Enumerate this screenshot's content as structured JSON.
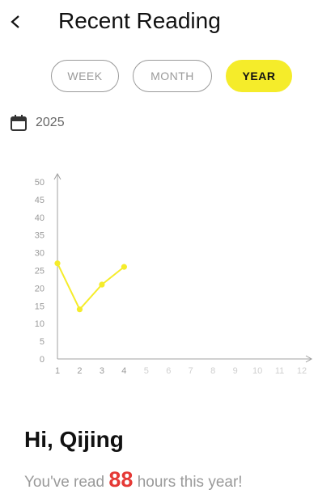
{
  "header": {
    "title": "Recent Reading",
    "back_icon": "chevron-left-icon"
  },
  "filters": {
    "options": [
      "WEEK",
      "MONTH",
      "YEAR"
    ],
    "selected": "YEAR",
    "accent_color": "#f5ec2a"
  },
  "period": {
    "icon": "calendar-icon",
    "label": "2025"
  },
  "chart_data": {
    "type": "line",
    "x_ticks": [
      "1",
      "2",
      "3",
      "4",
      "5",
      "6",
      "7",
      "8",
      "9",
      "10",
      "11",
      "12"
    ],
    "y_ticks": [
      "0",
      "5",
      "10",
      "15",
      "20",
      "25",
      "30",
      "35",
      "40",
      "45",
      "50"
    ],
    "x": [
      1,
      2,
      3,
      4
    ],
    "values": [
      27,
      14,
      21,
      26
    ],
    "xlim": [
      1,
      12
    ],
    "ylim": [
      0,
      50
    ],
    "grid": false,
    "line_color": "#f5ec2a"
  },
  "summary": {
    "greeting": "Hi, Qijing",
    "prefix": "You've read",
    "hours": "88",
    "suffix": "hours this year!",
    "hours_color": "#e53935"
  }
}
